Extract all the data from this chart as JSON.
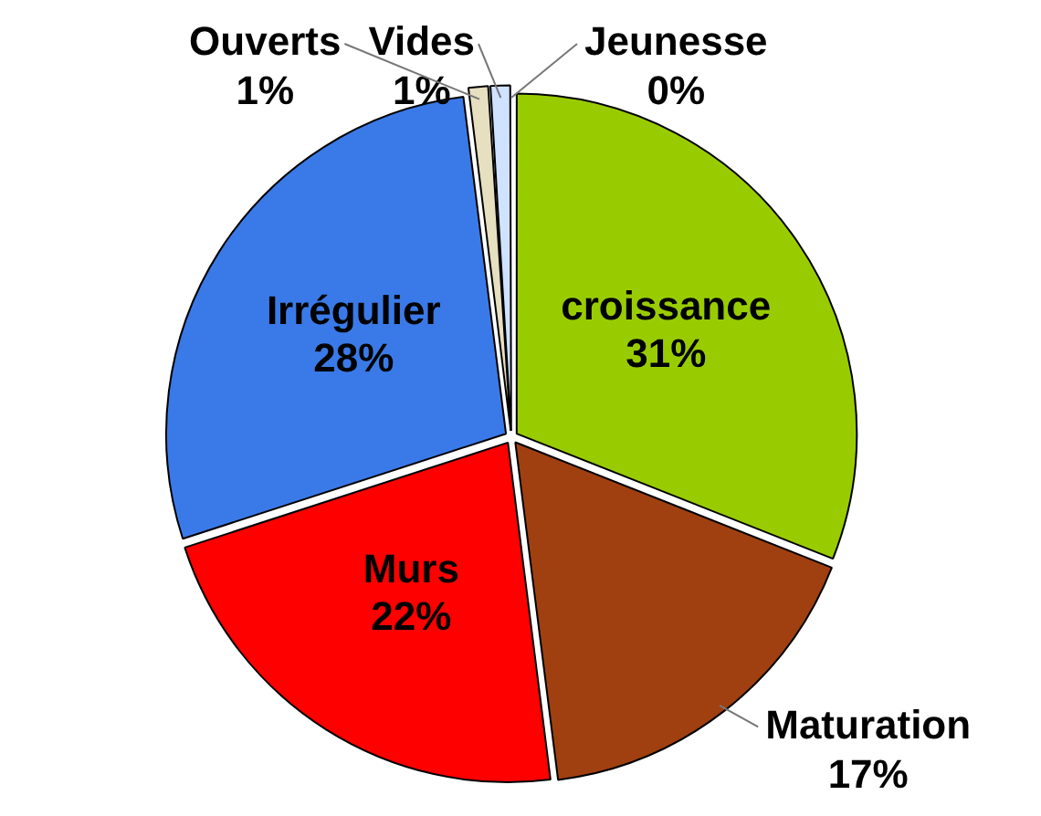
{
  "chart_data": {
    "type": "pie",
    "categories": [
      "Jeunesse",
      "croissance",
      "Maturation",
      "Murs",
      "Irrégulier",
      "Ouverts",
      "Vides"
    ],
    "values": [
      0,
      31,
      17,
      22,
      28,
      1,
      1
    ],
    "value_labels": [
      "0%",
      "31%",
      "17%",
      "22%",
      "28%",
      "1%",
      "1%"
    ],
    "colors": [
      "#ffffff",
      "#99cc00",
      "#a04010",
      "#ff0000",
      "#3a7ae8",
      "#e6dfc0",
      "#cfe2ff"
    ],
    "legend": false
  }
}
